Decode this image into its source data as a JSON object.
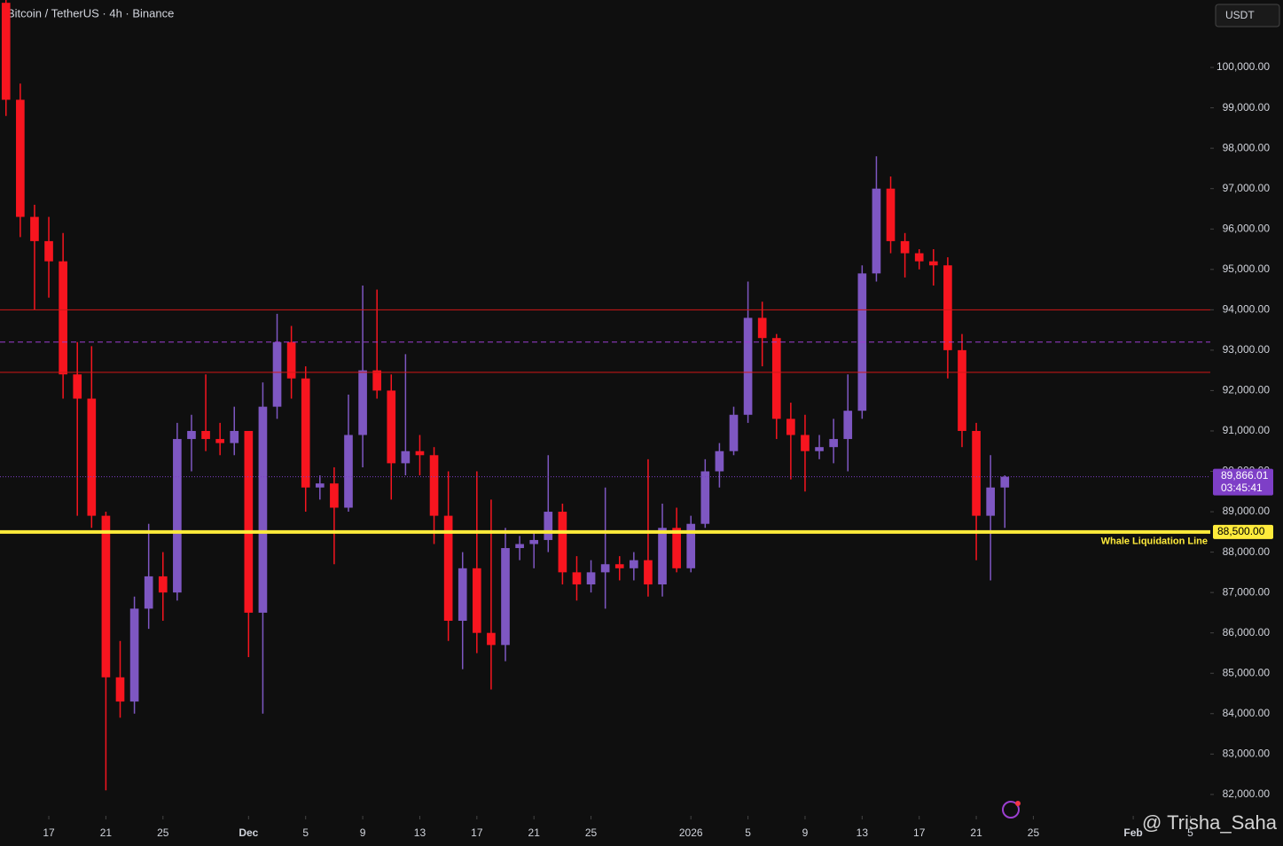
{
  "header": {
    "title": "Bitcoin / TetherUS · 4h · Binance",
    "currency_button": "USDT"
  },
  "chart_data": {
    "type": "candlestick",
    "open": [
      101600,
      99200,
      96300,
      95700,
      95200,
      92400,
      91800,
      88900,
      84900,
      84300,
      86600,
      87400,
      87000,
      90800,
      91000,
      90800,
      90700,
      91000,
      86500,
      91600,
      93200,
      92300,
      89600,
      89700,
      89100,
      90900,
      92500,
      92000,
      90200,
      90500,
      90400,
      88900,
      86300,
      87600,
      86000,
      85700,
      88100,
      88200,
      88300,
      89000,
      87500,
      87200,
      87500,
      87700,
      87600,
      87800,
      87200,
      88600,
      87600,
      88700,
      90000,
      90500,
      91400,
      93800,
      93300,
      91300,
      90900,
      90500,
      90600,
      90800,
      91500,
      94900,
      97000,
      95700,
      95400,
      95200,
      95100,
      93000,
      91000,
      88900,
      89600
    ],
    "high": [
      101700,
      99600,
      96600,
      96300,
      95900,
      93200,
      93100,
      89000,
      85800,
      86900,
      88700,
      88000,
      91200,
      91400,
      92400,
      91200,
      91600,
      91000,
      92200,
      93900,
      93600,
      92600,
      89900,
      90100,
      91900,
      94600,
      94500,
      92400,
      92900,
      90900,
      90600,
      90000,
      88000,
      90000,
      89300,
      88600,
      88400,
      88500,
      90400,
      89200,
      87900,
      87800,
      89600,
      87900,
      88000,
      90300,
      89200,
      89100,
      88900,
      90300,
      90700,
      91600,
      94700,
      94200,
      93400,
      91700,
      91400,
      90900,
      91300,
      92400,
      95100,
      97800,
      97300,
      95900,
      95500,
      95500,
      95300,
      93400,
      91200,
      90400,
      89900
    ],
    "low": [
      98800,
      95800,
      94000,
      94300,
      91800,
      88900,
      88600,
      82100,
      83900,
      84000,
      86100,
      86300,
      86800,
      90000,
      90500,
      90400,
      90400,
      85400,
      84000,
      91300,
      91800,
      89000,
      89300,
      87700,
      89000,
      90100,
      91800,
      89300,
      89900,
      89900,
      88200,
      85800,
      85100,
      85500,
      84600,
      85300,
      87800,
      87600,
      88000,
      87200,
      86800,
      87000,
      86600,
      87300,
      87300,
      86900,
      86900,
      87500,
      87500,
      88600,
      89600,
      90400,
      91200,
      92600,
      90800,
      89800,
      89500,
      90300,
      90200,
      90000,
      91300,
      94700,
      95400,
      94800,
      95000,
      94600,
      92300,
      90600,
      87800,
      87300,
      88600
    ],
    "close": [
      99200,
      96300,
      95700,
      95200,
      92400,
      91800,
      88900,
      84900,
      84300,
      86600,
      87400,
      87000,
      90800,
      91000,
      90800,
      90700,
      91000,
      86500,
      91600,
      93200,
      92300,
      89600,
      89700,
      89100,
      90900,
      92500,
      92000,
      90200,
      90500,
      90400,
      88900,
      86300,
      87600,
      86000,
      85700,
      88100,
      88200,
      88300,
      89000,
      87500,
      87200,
      87500,
      87700,
      87600,
      87800,
      87200,
      88600,
      87600,
      88700,
      90000,
      90500,
      91400,
      93800,
      93300,
      91300,
      90900,
      90500,
      90600,
      90800,
      91500,
      94900,
      97000,
      95700,
      95400,
      95200,
      95100,
      93000,
      91000,
      88900,
      89600,
      89866.01
    ],
    "up_color": "#7e57c2",
    "down_color": "#f7151f",
    "ylim": [
      81470,
      101670
    ],
    "yticks": [
      {
        "value": 82000,
        "label": "82,000.00"
      },
      {
        "value": 83000,
        "label": "83,000.00"
      },
      {
        "value": 84000,
        "label": "84,000.00"
      },
      {
        "value": 85000,
        "label": "85,000.00"
      },
      {
        "value": 86000,
        "label": "86,000.00"
      },
      {
        "value": 87000,
        "label": "87,000.00"
      },
      {
        "value": 88000,
        "label": "88,000.00"
      },
      {
        "value": 89000,
        "label": "89,000.00"
      },
      {
        "value": 90000,
        "label": "90,000.00"
      },
      {
        "value": 91000,
        "label": "91,000.00"
      },
      {
        "value": 92000,
        "label": "92,000.00"
      },
      {
        "value": 93000,
        "label": "93,000.00"
      },
      {
        "value": 94000,
        "label": "94,000.00"
      },
      {
        "value": 95000,
        "label": "95,000.00"
      },
      {
        "value": 96000,
        "label": "96,000.00"
      },
      {
        "value": 97000,
        "label": "97,000.00"
      },
      {
        "value": 98000,
        "label": "98,000.00"
      },
      {
        "value": 99000,
        "label": "99,000.00"
      },
      {
        "value": 100000,
        "label": "100,000.00"
      }
    ],
    "xlim": [
      -0.42,
      84.4
    ],
    "xticks": [
      {
        "value": 3,
        "label": "17"
      },
      {
        "value": 7,
        "label": "21"
      },
      {
        "value": 11,
        "label": "25"
      },
      {
        "value": 17,
        "label": "Dec"
      },
      {
        "value": 21,
        "label": "5"
      },
      {
        "value": 25,
        "label": "9"
      },
      {
        "value": 29,
        "label": "13"
      },
      {
        "value": 33,
        "label": "17"
      },
      {
        "value": 37,
        "label": "21"
      },
      {
        "value": 41,
        "label": "25"
      },
      {
        "value": 48,
        "label": "2026"
      },
      {
        "value": 52,
        "label": "5"
      },
      {
        "value": 56,
        "label": "9"
      },
      {
        "value": 60,
        "label": "13"
      },
      {
        "value": 64,
        "label": "17"
      },
      {
        "value": 68,
        "label": "21"
      },
      {
        "value": 72,
        "label": "25"
      },
      {
        "value": 79,
        "label": "Feb"
      },
      {
        "value": 83,
        "label": "5"
      }
    ],
    "levels": [
      {
        "value": 94000,
        "color": "#d01818",
        "style": "solid",
        "line_width": 1
      },
      {
        "value": 93200,
        "color": "#9c3fd0",
        "style": "dashed",
        "line_width": 1
      },
      {
        "value": 92450,
        "color": "#d01818",
        "style": "solid",
        "line_width": 1
      },
      {
        "value": 88500,
        "color": "#ffeb3b",
        "style": "solid",
        "line_width": 4,
        "name": "Whale Liquidation Line",
        "label": "88,500.00"
      }
    ],
    "last_price": {
      "value": 89866.01,
      "label": "89,866.01",
      "countdown": "03:45:41",
      "color": "#7e3fc7"
    }
  },
  "watermark": "@ Trisha_Saha"
}
